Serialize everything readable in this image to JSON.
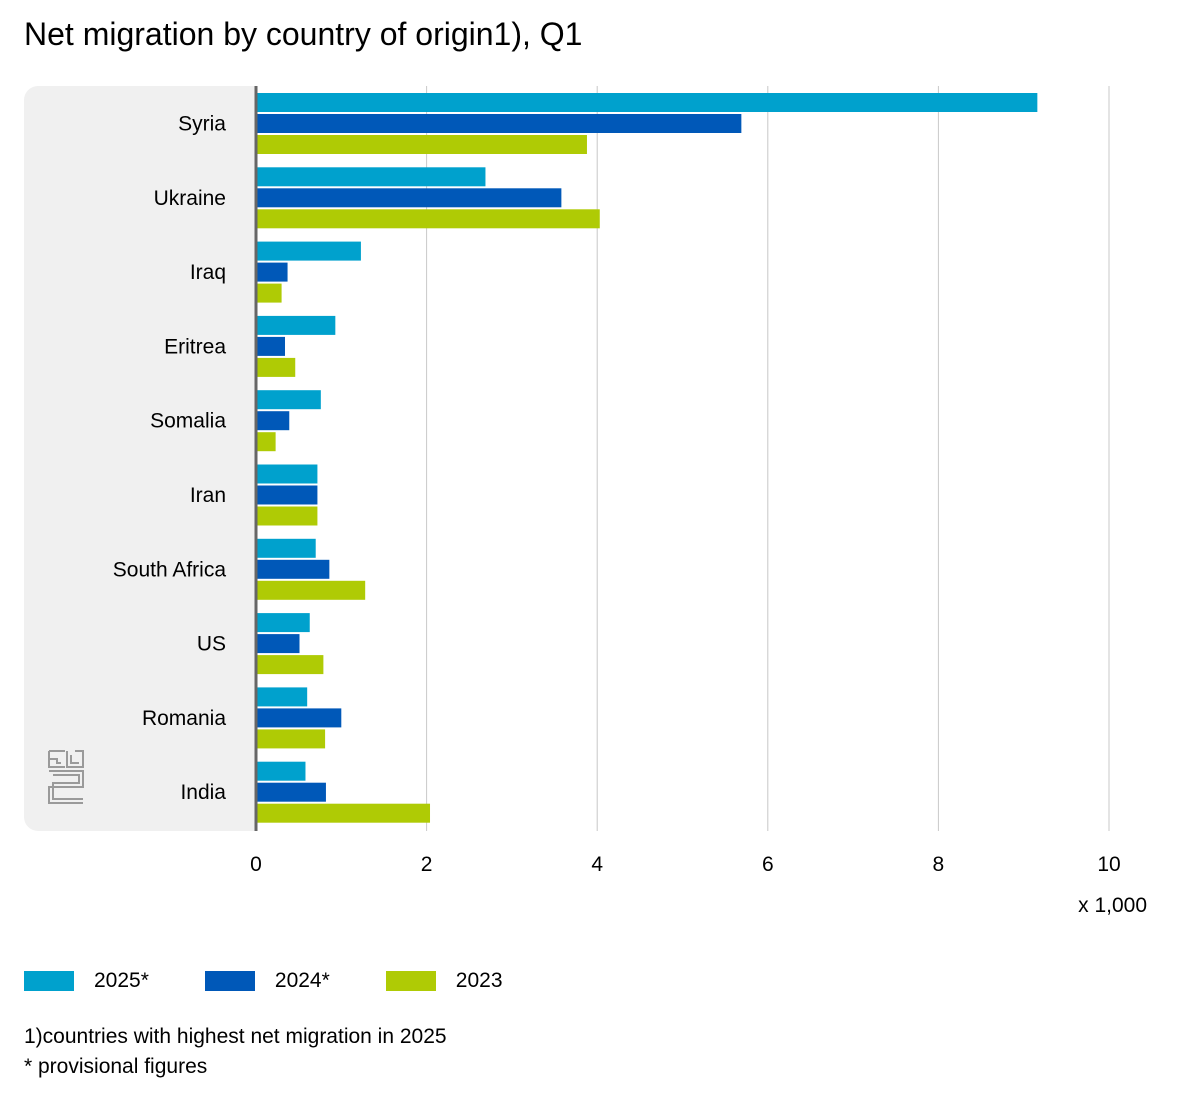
{
  "title": "Net migration by country of origin1), Q1",
  "chart_data": {
    "type": "bar",
    "orientation": "horizontal",
    "categories": [
      "Syria",
      "Ukraine",
      "Iraq",
      "Eritrea",
      "Somalia",
      "Iran",
      "South Africa",
      "US",
      "Romania",
      "India"
    ],
    "series": [
      {
        "name": "2025*",
        "color": "#00a1cd",
        "values": [
          9.16,
          2.69,
          1.23,
          0.93,
          0.76,
          0.72,
          0.7,
          0.63,
          0.6,
          0.58
        ]
      },
      {
        "name": "2024*",
        "color": "#0058b8",
        "values": [
          5.69,
          3.58,
          0.37,
          0.34,
          0.39,
          0.72,
          0.86,
          0.51,
          1.0,
          0.82
        ]
      },
      {
        "name": "2023",
        "color": "#afcb05",
        "values": [
          3.88,
          4.03,
          0.3,
          0.46,
          0.23,
          0.72,
          1.28,
          0.79,
          0.81,
          2.04
        ]
      }
    ],
    "xlim": [
      0,
      10
    ],
    "xticks": [
      "0",
      "2",
      "4",
      "6",
      "8",
      "10"
    ],
    "xunit": "x 1,000",
    "xlabel": "",
    "ylabel": "",
    "grid": true,
    "legend_position": "bottom"
  },
  "notes": [
    "1)countries with highest net migration in 2025",
    "* provisional figures"
  ],
  "logo_icon": "cbs-logo"
}
